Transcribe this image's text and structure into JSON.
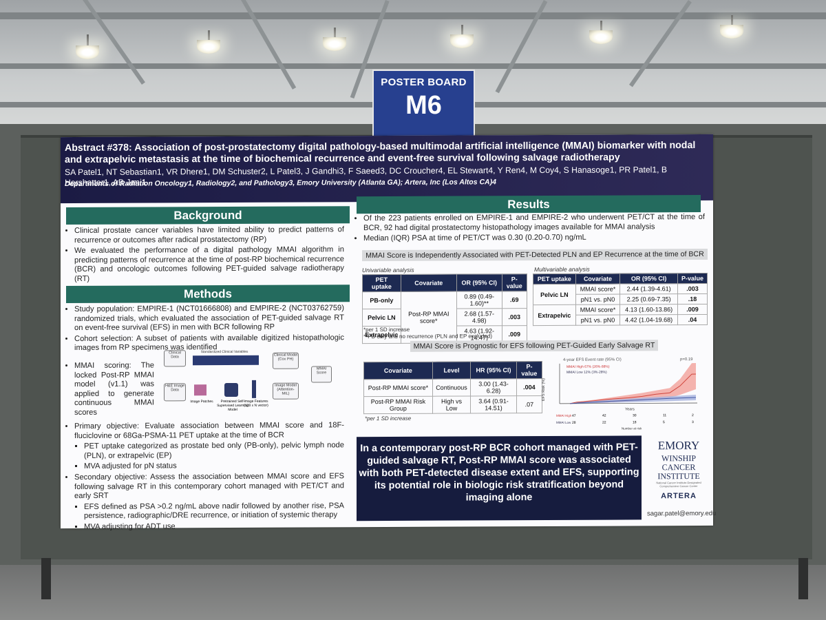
{
  "sign": {
    "label": "POSTER BOARD",
    "code": "M6"
  },
  "poster": {
    "title": "Abstract #378: Association of post-prostatectomy digital pathology-based multimodal artificial intelligence (MMAI) biomarker with nodal and extrapelvic metastasis at the time of biochemical recurrence and event-free survival following salvage radiotherapy",
    "authors": "SA Patel1, NT Sebastian1, VR Dhere1, DM Schuster2, L Patel3, J Gandhi3, F Saeed3, DC Croucher4, EL Stewart4, Y Ren4, M Coy4, S Hanasoge1, PR Patel1, B Hershatter1, AB Jani1",
    "affiliations": "Departments of Radiation Oncology1, Radiology2, and Pathology3, Emory University (Atlanta GA); Artera, Inc (Los Altos CA)4",
    "background": {
      "heading": "Background",
      "bullets": [
        "Clinical prostate cancer variables have limited ability to predict patterns of recurrence or outcomes after radical prostatectomy (RP)",
        "We evaluated the performance of a digital pathology MMAI algorithm in predicting patterns of recurrence at the time of post-RP biochemical recurrence (BCR) and oncologic outcomes following PET-guided salvage radiotherapy (RT)"
      ]
    },
    "methods": {
      "heading": "Methods",
      "b1": "Study population: EMPIRE-1 (NCT01666808) and EMPIRE-2 (NCT03762759) randomized trials, which evaluated the association of PET-guided salvage RT on event-free survival (EFS) in men with BCR following RP",
      "b2": "Cohort selection: A subset of patients with available digitized histopathologic images from RP specimens was identified",
      "b3": "MMAI scoring: The locked Post-RP MMAI model (v1.1) was applied to generate continuous MMAI scores",
      "b4": "Primary objective: Evaluate association between MMAI score and 18F-fluciclovine or 68Ga-PSMA-11 PET uptake at the time of BCR",
      "b4a": "PET uptake categorized as prostate bed only (PB-only), pelvic lymph node (PLN), or extrapelvic (EP)",
      "b4b": "MVA adjusted for pN status",
      "b5": "Secondary objective: Assess the association between MMAI score and EFS following salvage RT in this contemporary cohort managed with PET/CT and early SRT",
      "b5a": "EFS defined as PSA >0.2 ng/mL above nadir followed by another rise, PSA persistence, radiographic/DRE recurrence, or initiation of systemic therapy",
      "b5b": "MVA adjusting for ADT use",
      "diagram": {
        "clinical": "Clinical Data",
        "std": "Standardized Clinical Variables",
        "h_e": "H&E Image Data",
        "patches": "Image Patches",
        "ssl": "Pretrained Self-Supervised Learning Model",
        "features": "Image Features (128 x N vector)",
        "clin_model": "Clinical Model (Cox PH)",
        "img_model": "Image Model (Attention-MIL)",
        "score": "MMAI Score"
      }
    },
    "results": {
      "heading": "Results",
      "r1": "Of the 223 patients enrolled on EMPIRE-1 and EMPIRE-2 who underwent PET/CT at the time of BCR, 92 had digital prostatectomy histopathology images available for MMAI analysis",
      "r2": "Median (IQR) PSA at time of PET/CT was 0.30 (0.20-0.70) ng/mL",
      "bar1": "MMAI Score is Independently Associated with PET-Detected PLN and EP Recurrence at the time of BCR",
      "uni_cap": "Univariable analysis",
      "multi_cap": "Multivariable analysis",
      "uni_headers": [
        "PET uptake",
        "Covariate",
        "OR (95% CI)",
        "P-value"
      ],
      "uni_rows": [
        {
          "pet": "PB-only",
          "or": "0.89 (0.49-1.60)**",
          "p": ".69"
        },
        {
          "pet": "Pelvic LN",
          "or": "2.68 (1.57-4.98)",
          "p": ".003"
        },
        {
          "pet": "Extrapelvic",
          "or": "4.63 (1.92-14.47)",
          "p": ".009"
        }
      ],
      "uni_cov": "Post-RP MMAI score*",
      "uni_note1": "*per 1 SD increase",
      "uni_note2": "**PB-only and no recurrence (PLN and EP excluded)",
      "multi_headers": [
        "PET uptake",
        "Covariate",
        "OR (95% CI)",
        "P-value"
      ],
      "multi_rows": [
        {
          "pet": "Pelvic LN",
          "cov": "MMAI score*",
          "or": "2.44 (1.39-4.61)",
          "p": ".003"
        },
        {
          "pet": "",
          "cov": "pN1 vs. pN0",
          "or": "2.25 (0.69-7.35)",
          "p": ".18"
        },
        {
          "pet": "Extrapelvic",
          "cov": "MMAI score*",
          "or": "4.13 (1.60-13.86)",
          "p": ".009"
        },
        {
          "pet": "",
          "cov": "pN1 vs. pN0",
          "or": "4.42 (1.04-19.68)",
          "p": ".04"
        }
      ],
      "bar2": "MMAI Score is Prognostic for EFS following PET-Guided Early Salvage RT",
      "efs_headers": [
        "Covariate",
        "Level",
        "HR (95% CI)",
        "P-value"
      ],
      "efs_rows": [
        {
          "cov": "Post-RP MMAI score*",
          "lvl": "Continuous",
          "hr": "3.00 (1.43-6.28)",
          "p": ".004"
        },
        {
          "cov": "Post-RP MMAI Risk Group",
          "lvl": "High vs Low",
          "hr": "3.64 (0.91-14.51)",
          "p": ".07"
        }
      ],
      "efs_note": "*per 1 SD increase",
      "km": {
        "title": "4-year EFS Event rate (95% CI)",
        "pval": "p=0.19",
        "high": "MMAI High  67% (26%-88%)",
        "low": "MMAI Low   12% (3%-28%)",
        "ylabel": "EFS Risk (%)",
        "xlabel": "Years",
        "risk_label": "Number at risk",
        "risk_high": [
          "47",
          "42",
          "30",
          "11",
          "2"
        ],
        "risk_low": [
          "28",
          "22",
          "18",
          "5",
          "3"
        ],
        "colors": {
          "high": "#e0605a",
          "low": "#6d7fbf"
        }
      },
      "conclusion": "In a contemporary post-RP BCR cohort managed with PET-guided salvage RT, Post-RP MMAI score was associated with both PET-detected disease extent and EFS, supporting its potential role in biologic risk stratification beyond imaging alone"
    },
    "logos": {
      "emory": "EMORY",
      "winship": "WINSHIP CANCER INSTITUTE",
      "winship_sub": "National Cancer Institute-Designated Comprehensive Cancer Center",
      "artera": "ARTERA"
    },
    "email": "sagar.patel@emory.edu"
  }
}
